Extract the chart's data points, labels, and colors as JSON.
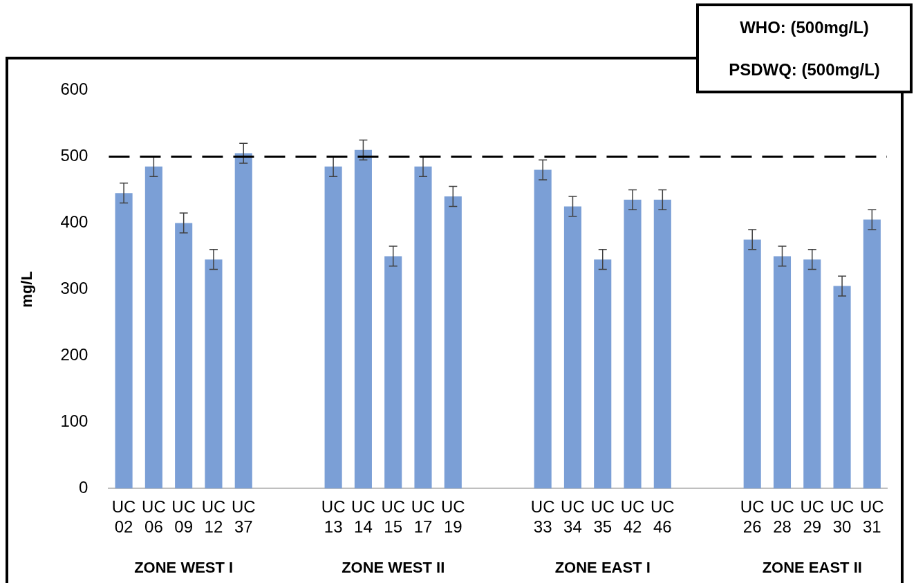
{
  "chart_data": {
    "type": "bar",
    "ylabel": "mg/L",
    "categories": [
      "UC 02",
      "UC 06",
      "UC 09",
      "UC 12",
      "UC 37",
      null,
      null,
      "UC 13",
      "UC 14",
      "UC 15",
      "UC 17",
      "UC 19",
      null,
      null,
      "UC 33",
      "UC 34",
      "UC 35",
      "UC 42",
      "UC 46",
      null,
      null,
      "UC 26",
      "UC 28",
      "UC 29",
      "UC 30",
      "UC 31"
    ],
    "values": [
      445,
      485,
      400,
      345,
      505,
      null,
      null,
      485,
      510,
      350,
      485,
      440,
      null,
      null,
      480,
      425,
      345,
      435,
      435,
      null,
      null,
      375,
      350,
      345,
      305,
      405
    ],
    "errors": [
      15,
      15,
      15,
      15,
      15,
      null,
      null,
      15,
      15,
      15,
      15,
      15,
      null,
      null,
      15,
      15,
      15,
      15,
      15,
      null,
      null,
      15,
      15,
      15,
      15,
      15
    ],
    "color": "#7b9fd6",
    "ylim": [
      0,
      600
    ],
    "yticks": [
      0,
      100,
      200,
      300,
      400,
      500,
      600
    ],
    "grid": false,
    "ref_lines": [
      {
        "axis": "y",
        "value": 500,
        "label": "WHO: (500mg/L)",
        "color": "#000000",
        "line_style": "dashed"
      }
    ],
    "annotations": [
      "ZONE WEST I",
      "ZONE WEST II",
      "ZONE EAST I",
      "ZONE EAST II",
      "PSDWQ: (500mg/L)"
    ]
  }
}
